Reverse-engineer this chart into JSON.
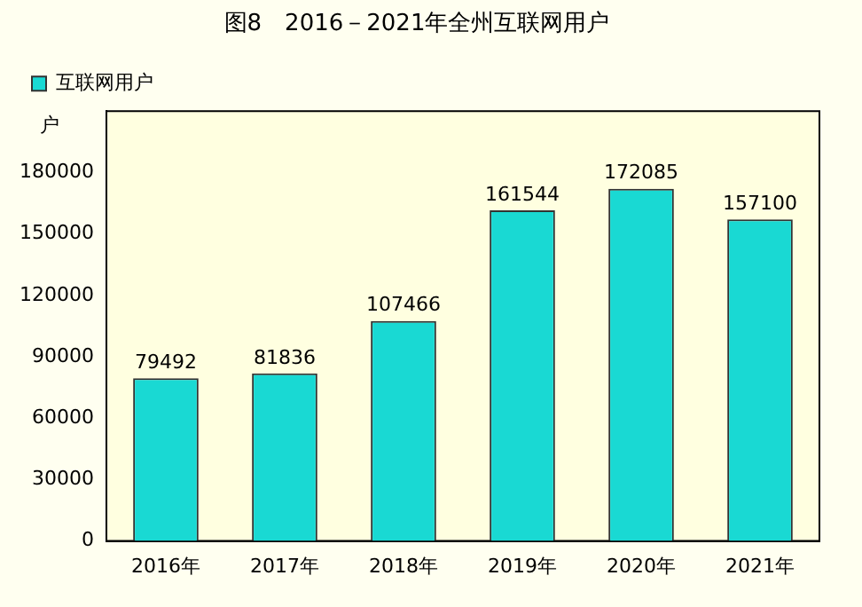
{
  "chart_data": {
    "type": "bar",
    "title": "图8　2016－2021年全州互联网用户",
    "ylabel": "户",
    "categories": [
      "2016年",
      "2017年",
      "2018年",
      "2019年",
      "2020年",
      "2021年"
    ],
    "series": [
      {
        "name": "互联网用户",
        "color": "#19d9d3",
        "values": [
          79492,
          81836,
          107466,
          161544,
          172085,
          157100
        ]
      }
    ],
    "ylim": [
      0,
      210000
    ],
    "yticks": [
      0,
      30000,
      60000,
      90000,
      120000,
      150000,
      180000
    ],
    "grid": false,
    "legend": "top left",
    "data_labels": true
  }
}
